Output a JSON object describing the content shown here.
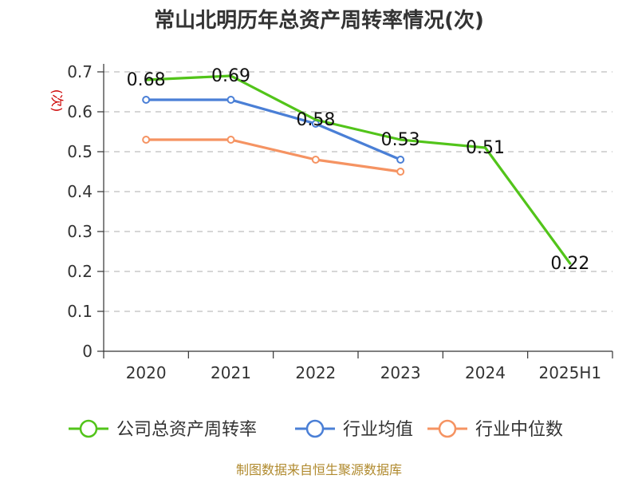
{
  "chart_data": {
    "type": "line",
    "title": "常山北明历年总资产周转率情况(次)",
    "y_unit": "(次)",
    "xlabel": "",
    "ylabel": "",
    "categories": [
      "2020",
      "2021",
      "2022",
      "2023",
      "2024",
      "2025H1"
    ],
    "ylim": [
      0,
      0.7
    ],
    "yticks": [
      0,
      0.1,
      0.2,
      0.3,
      0.4,
      0.5,
      0.6,
      0.7
    ],
    "ytick_labels": [
      "0",
      "0.1",
      "0.2",
      "0.3",
      "0.4",
      "0.5",
      "0.6",
      "0.7"
    ],
    "grid": true,
    "legend_position": "bottom",
    "series": [
      {
        "name": "公司总资产周转率",
        "color": "#52c41a",
        "values": [
          0.68,
          0.69,
          0.58,
          0.53,
          0.51,
          0.22
        ],
        "data_labels": [
          "0.68",
          "0.69",
          "0.58",
          "0.53",
          "0.51",
          "0.22"
        ],
        "show_markers": false
      },
      {
        "name": "行业均值",
        "color": "#4a7fd6",
        "values": [
          0.63,
          0.63,
          0.57,
          0.48,
          null,
          null
        ],
        "show_markers": true
      },
      {
        "name": "行业中位数",
        "color": "#f59362",
        "values": [
          0.53,
          0.53,
          0.48,
          0.45,
          null,
          null
        ],
        "show_markers": true
      }
    ],
    "source": "制图数据来自恒生聚源数据库"
  }
}
